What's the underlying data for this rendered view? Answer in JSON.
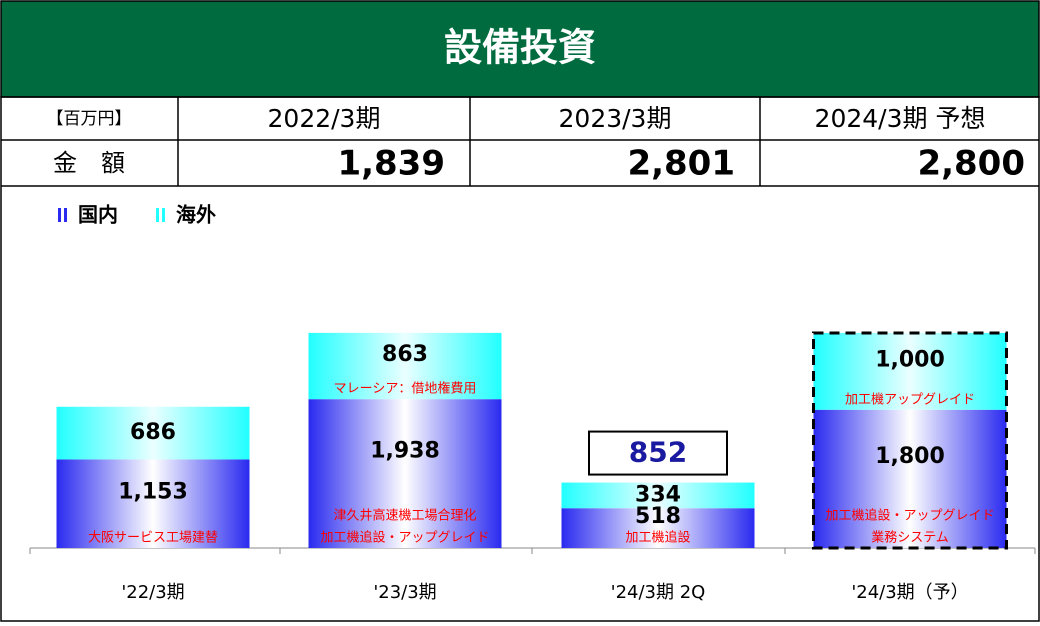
{
  "header": {
    "title": "設備投資"
  },
  "table": {
    "unit": "【百万円】",
    "periods": [
      "2022/3期",
      "2023/3期",
      "2024/3期 予想"
    ],
    "row_label": "金　額",
    "amounts": [
      "1,839",
      "2,801",
      "2,800"
    ]
  },
  "chart_data": {
    "type": "stacked_bar",
    "categories": [
      "'22/3期",
      "'23/3期",
      "'24/3期 2Q",
      "'24/3期（予）"
    ],
    "series": [
      {
        "name": "国内",
        "color": "#2a2af0",
        "values": [
          1153,
          1938,
          518,
          1800
        ],
        "value_labels": [
          "1,153",
          "1,938",
          "518",
          "1,800"
        ]
      },
      {
        "name": "海外",
        "color": "#22ffff",
        "values": [
          686,
          863,
          334,
          1000
        ],
        "value_labels": [
          "686",
          "863",
          "334",
          "1,000"
        ]
      }
    ],
    "totals": [
      {
        "category": 2,
        "value": 852
      }
    ],
    "forecast_category": 3,
    "annotations": [
      {
        "series": 0,
        "category": 0,
        "lines": [
          "大阪サービス工場建替"
        ]
      },
      {
        "series": 1,
        "category": 1,
        "lines": [
          "マレーシア：借地権費用"
        ]
      },
      {
        "series": 0,
        "category": 1,
        "lines": [
          "津久井高速機工場合理化",
          "加工機追設・アップグレイド"
        ]
      },
      {
        "series": 0,
        "category": 2,
        "lines": [
          "加工機追設"
        ]
      },
      {
        "series": 1,
        "category": 3,
        "lines": [
          "加工機アップグレイド"
        ]
      },
      {
        "series": 0,
        "category": 3,
        "lines": [
          "加工機追設・アップグレイド",
          "業務システム"
        ]
      }
    ]
  }
}
